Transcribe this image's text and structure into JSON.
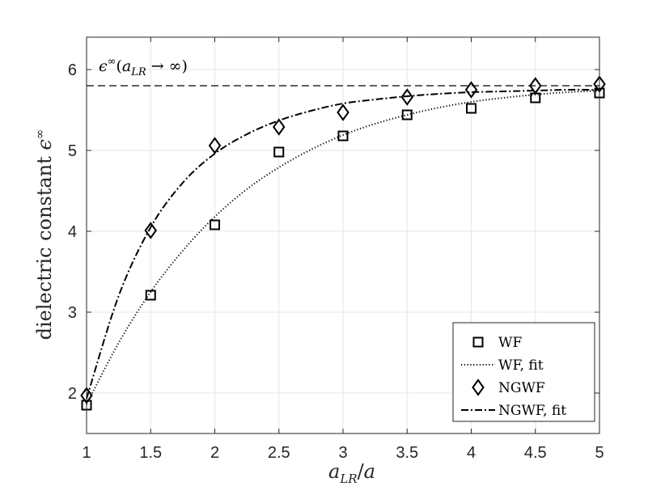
{
  "chart_data": {
    "type": "scatter",
    "xlabel": "a_LR/a",
    "ylabel": "dielectric constant ε^∞",
    "xlim": [
      1,
      5
    ],
    "ylim": [
      1.5,
      6.4
    ],
    "xticks": [
      1,
      1.5,
      2,
      2.5,
      3,
      3.5,
      4,
      4.5,
      5
    ],
    "xtick_labels": [
      "1",
      "1.5",
      "2",
      "2.5",
      "3",
      "3.5",
      "4",
      "4.5",
      "5"
    ],
    "yticks": [
      2,
      3,
      4,
      5,
      6
    ],
    "ytick_labels": [
      "2",
      "3",
      "4",
      "5",
      "6"
    ],
    "grid": true,
    "legend_position": "bottom-right",
    "reference_line": {
      "y": 5.8,
      "style": "dashed",
      "label": "ε^∞(a_LR → ∞)"
    },
    "series": [
      {
        "name": "WF",
        "kind": "markers",
        "marker": "square",
        "x": [
          1,
          1.5,
          2,
          2.5,
          3,
          3.5,
          4,
          4.5,
          5
        ],
        "y": [
          1.85,
          3.21,
          4.08,
          4.98,
          5.18,
          5.44,
          5.52,
          5.65,
          5.71
        ]
      },
      {
        "name": "WF, fit",
        "kind": "line",
        "linestyle": "dotted",
        "x": [
          1,
          1.25,
          1.5,
          1.75,
          2,
          2.25,
          2.5,
          2.75,
          3,
          3.25,
          3.5,
          3.75,
          4,
          4.25,
          4.5,
          4.75,
          5
        ],
        "y": [
          1.86,
          2.62,
          3.25,
          3.76,
          4.18,
          4.52,
          4.79,
          5.01,
          5.19,
          5.33,
          5.44,
          5.53,
          5.6,
          5.65,
          5.69,
          5.72,
          5.74
        ]
      },
      {
        "name": "NGWF",
        "kind": "markers",
        "marker": "diamond",
        "x": [
          1,
          1.5,
          2,
          2.5,
          3,
          3.5,
          4,
          4.5,
          5
        ],
        "y": [
          1.97,
          4.01,
          5.06,
          5.29,
          5.47,
          5.66,
          5.75,
          5.8,
          5.82
        ]
      },
      {
        "name": "NGWF, fit",
        "kind": "line",
        "linestyle": "dashdot",
        "x": [
          1,
          1.25,
          1.5,
          1.75,
          2,
          2.25,
          2.5,
          2.75,
          3,
          3.25,
          3.5,
          3.75,
          4,
          4.25,
          4.5,
          4.75,
          5
        ],
        "y": [
          1.93,
          3.2,
          4.05,
          4.6,
          4.96,
          5.2,
          5.37,
          5.49,
          5.58,
          5.63,
          5.67,
          5.7,
          5.72,
          5.73,
          5.74,
          5.75,
          5.75
        ]
      }
    ]
  }
}
